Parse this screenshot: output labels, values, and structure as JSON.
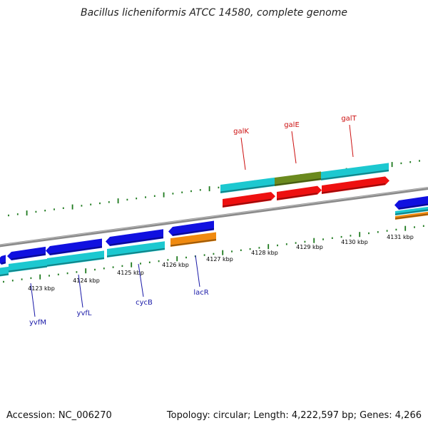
{
  "title": "Bacillus licheniformis ATCC 14580, complete genome",
  "footer": {
    "accession": "Accession: NC_006270",
    "summary": "Topology: circular; Length: 4,222,597 bp; Genes: 4,266"
  },
  "colors": {
    "backbone": "#888888",
    "tick": "#1e7a1e",
    "blue_gene": "#1010e0",
    "cyan_gene": "#1cc8d0",
    "red_gene": "#ee1010",
    "orange_gene": "#f08a10",
    "olive_gene": "#6b8a1e",
    "label_blue": "#1a1aa8",
    "label_red": "#cc1010"
  },
  "axis": {
    "unit": "kbp",
    "ticks": [
      {
        "kbp": 4123,
        "label": "4123 kbp"
      },
      {
        "kbp": 4124,
        "label": "4124 kbp"
      },
      {
        "kbp": 4125,
        "label": "4125 kbp"
      },
      {
        "kbp": 4126,
        "label": "4126 kbp"
      },
      {
        "kbp": 4127,
        "label": "4127 kbp"
      },
      {
        "kbp": 4128,
        "label": "4128 kbp"
      },
      {
        "kbp": 4129,
        "label": "4129 kbp"
      },
      {
        "kbp": 4130,
        "label": "4130 kbp"
      },
      {
        "kbp": 4131,
        "label": "4131 kbp"
      }
    ]
  },
  "gene_labels": [
    {
      "name": "yvfM",
      "color": "label_blue"
    },
    {
      "name": "yvfL",
      "color": "label_blue"
    },
    {
      "name": "cycB",
      "color": "label_blue"
    },
    {
      "name": "lacR",
      "color": "label_blue"
    },
    {
      "name": "galK",
      "color": "label_red"
    },
    {
      "name": "galE",
      "color": "label_red"
    },
    {
      "name": "galT",
      "color": "label_red"
    }
  ]
}
